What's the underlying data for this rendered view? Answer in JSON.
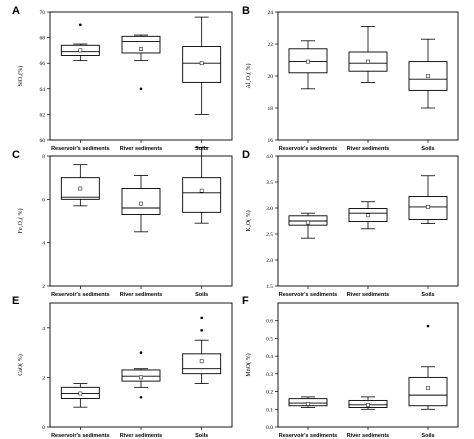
{
  "chart_data": [
    {
      "panel": "A",
      "type": "box",
      "ylabel": "SiO₂(%)",
      "categories": [
        "Reservoir's sediments",
        "River sediments",
        "Soils"
      ],
      "ylim": [
        60,
        70
      ],
      "yticks": [
        60,
        62,
        64,
        66,
        68,
        70
      ],
      "boxes": [
        {
          "min": 66.2,
          "q1": 66.6,
          "median": 66.9,
          "q3": 67.4,
          "max": 67.5,
          "mean": 67.0,
          "outliers": [
            69.0
          ]
        },
        {
          "min": 66.2,
          "q1": 66.8,
          "median": 67.7,
          "q3": 68.1,
          "max": 68.2,
          "mean": 67.1,
          "outliers": [
            64.0
          ]
        },
        {
          "min": 62.0,
          "q1": 64.5,
          "median": 66.0,
          "q3": 67.3,
          "max": 69.6,
          "mean": 66.0,
          "outliers": []
        }
      ]
    },
    {
      "panel": "B",
      "type": "box",
      "ylabel": "Al₂O₃( %)",
      "categories": [
        "Reservoir's sediments",
        "River sediments",
        "Soils"
      ],
      "ylim": [
        16,
        24
      ],
      "yticks": [
        16,
        18,
        20,
        22,
        24
      ],
      "boxes": [
        {
          "min": 19.2,
          "q1": 20.2,
          "median": 20.9,
          "q3": 21.7,
          "max": 22.2,
          "mean": 20.9,
          "outliers": []
        },
        {
          "min": 19.6,
          "q1": 20.3,
          "median": 20.8,
          "q3": 21.5,
          "max": 23.1,
          "mean": 20.9,
          "outliers": []
        },
        {
          "min": 18.0,
          "q1": 19.1,
          "median": 19.8,
          "q3": 20.9,
          "max": 22.3,
          "mean": 20.0,
          "outliers": []
        }
      ]
    },
    {
      "panel": "C",
      "type": "box",
      "ylabel": "Fe₂O₃( %)",
      "categories": [
        "Reservoir's sediments",
        "River sediments",
        "Soils"
      ],
      "ylim": [
        2,
        8
      ],
      "yticks": [
        2,
        4,
        6,
        8
      ],
      "boxes": [
        {
          "min": 5.7,
          "q1": 6.0,
          "median": 6.1,
          "q3": 7.0,
          "max": 7.6,
          "mean": 6.5,
          "outliers": []
        },
        {
          "min": 4.5,
          "q1": 5.3,
          "median": 5.6,
          "q3": 6.5,
          "max": 7.1,
          "mean": 5.8,
          "outliers": []
        },
        {
          "min": 4.9,
          "q1": 5.4,
          "median": 6.3,
          "q3": 7.0,
          "max": 8.4,
          "mean": 6.4,
          "outliers": []
        }
      ]
    },
    {
      "panel": "D",
      "type": "box",
      "ylabel": "K₂O( %)",
      "categories": [
        "Reservoir's sediments",
        "River sediments",
        "Soils"
      ],
      "ylim": [
        1.5,
        4.0
      ],
      "yticks": [
        1.5,
        2.0,
        2.5,
        3.0,
        3.5,
        4.0
      ],
      "yticklabels": [
        "1.5",
        "2.0",
        "2.5",
        "3.0",
        "3.5",
        "4.0"
      ],
      "boxes": [
        {
          "min": 2.42,
          "q1": 2.67,
          "median": 2.75,
          "q3": 2.85,
          "max": 2.9,
          "mean": 2.72,
          "outliers": []
        },
        {
          "min": 2.6,
          "q1": 2.74,
          "median": 2.9,
          "q3": 2.99,
          "max": 3.12,
          "mean": 2.86,
          "outliers": []
        },
        {
          "min": 2.7,
          "q1": 2.78,
          "median": 3.02,
          "q3": 3.22,
          "max": 3.62,
          "mean": 3.02,
          "outliers": []
        }
      ]
    },
    {
      "panel": "E",
      "type": "box",
      "ylabel": "CaO( %)",
      "categories": [
        "Reservoir's sediments",
        "River sediments",
        "Soils"
      ],
      "ylim": [
        0,
        5
      ],
      "yticks": [
        0,
        2,
        4
      ],
      "boxes": [
        {
          "min": 0.8,
          "q1": 1.15,
          "median": 1.35,
          "q3": 1.6,
          "max": 1.75,
          "mean": 1.35,
          "outliers": []
        },
        {
          "min": 1.6,
          "q1": 1.85,
          "median": 2.05,
          "q3": 2.3,
          "max": 2.35,
          "mean": 2.0,
          "outliers": [
            3.0,
            1.2
          ]
        },
        {
          "min": 1.75,
          "q1": 2.15,
          "median": 2.35,
          "q3": 2.95,
          "max": 3.5,
          "mean": 2.65,
          "outliers": [
            4.4,
            3.9
          ]
        }
      ]
    },
    {
      "panel": "F",
      "type": "box",
      "ylabel": "MnO( %)",
      "categories": [
        "Reservoir's sediments",
        "River sediments",
        "Soils"
      ],
      "ylim": [
        0,
        0.7
      ],
      "yticks": [
        0,
        0.1,
        0.2,
        0.3,
        0.4,
        0.5,
        0.6
      ],
      "yticklabels": [
        "0.0",
        "0.1",
        "0.2",
        "0.3",
        "0.4",
        "0.5",
        "0.6"
      ],
      "boxes": [
        {
          "min": 0.11,
          "q1": 0.12,
          "median": 0.135,
          "q3": 0.16,
          "max": 0.17,
          "mean": 0.13,
          "outliers": []
        },
        {
          "min": 0.1,
          "q1": 0.11,
          "median": 0.125,
          "q3": 0.15,
          "max": 0.17,
          "mean": 0.125,
          "outliers": []
        },
        {
          "min": 0.1,
          "q1": 0.12,
          "median": 0.18,
          "q3": 0.28,
          "max": 0.34,
          "mean": 0.22,
          "outliers": [
            0.57
          ]
        }
      ]
    }
  ]
}
